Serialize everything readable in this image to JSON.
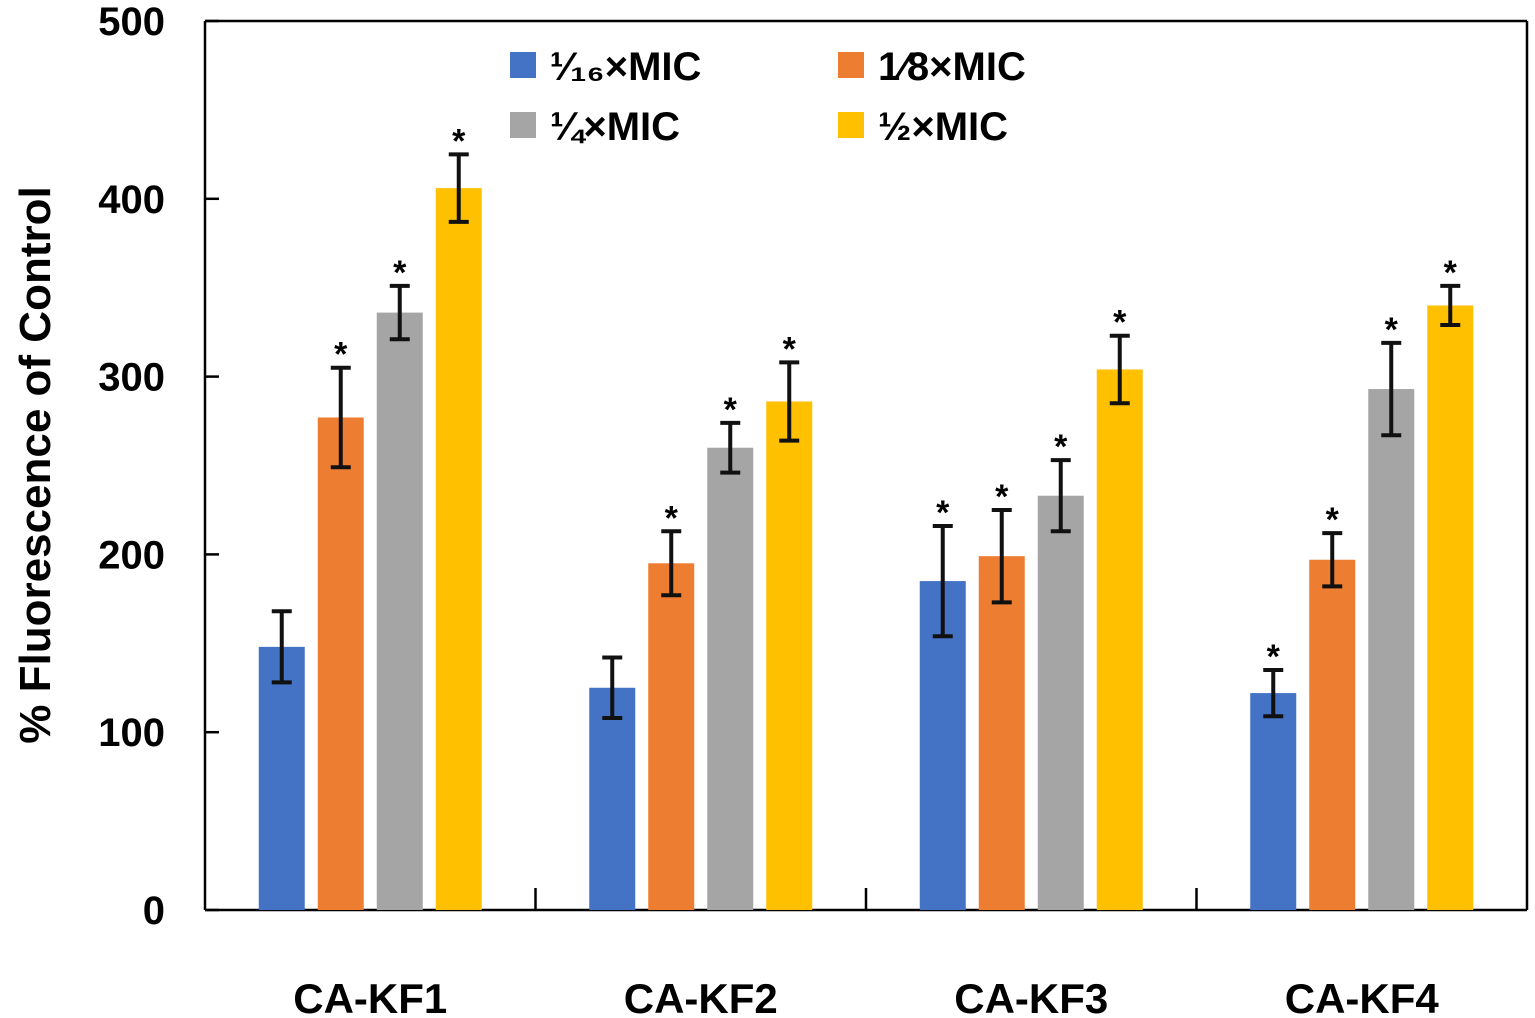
{
  "chart_data": {
    "type": "bar",
    "title": "",
    "xlabel": "",
    "ylabel": "% Fluorescence of Control",
    "ylim": [
      0,
      500
    ],
    "yticks": [
      0,
      100,
      200,
      300,
      400,
      500
    ],
    "categories": [
      "CA-KF1",
      "CA-KF2",
      "CA-KF3",
      "CA-KF4"
    ],
    "series": [
      {
        "name": "¹⁄₁₆×MIC",
        "color": "#4472C4",
        "values": [
          148,
          125,
          185,
          122
        ],
        "errors": [
          20,
          17,
          31,
          13
        ],
        "significant": [
          false,
          false,
          true,
          true
        ]
      },
      {
        "name": "1⁄8×MIC",
        "color": "#ED7D31",
        "values": [
          277,
          195,
          199,
          197
        ],
        "errors": [
          28,
          18,
          26,
          15
        ],
        "significant": [
          true,
          true,
          true,
          true
        ]
      },
      {
        "name": "¼×MIC",
        "color": "#A5A5A5",
        "values": [
          336,
          260,
          233,
          293
        ],
        "errors": [
          15,
          14,
          20,
          26
        ],
        "significant": [
          true,
          true,
          true,
          true
        ]
      },
      {
        "name": "½×MIC",
        "color": "#FFC000",
        "values": [
          406,
          286,
          304,
          340
        ],
        "errors": [
          19,
          22,
          19,
          11
        ],
        "significant": [
          true,
          true,
          true,
          true
        ]
      }
    ],
    "significance_marker": "*",
    "legend_position": "top"
  }
}
